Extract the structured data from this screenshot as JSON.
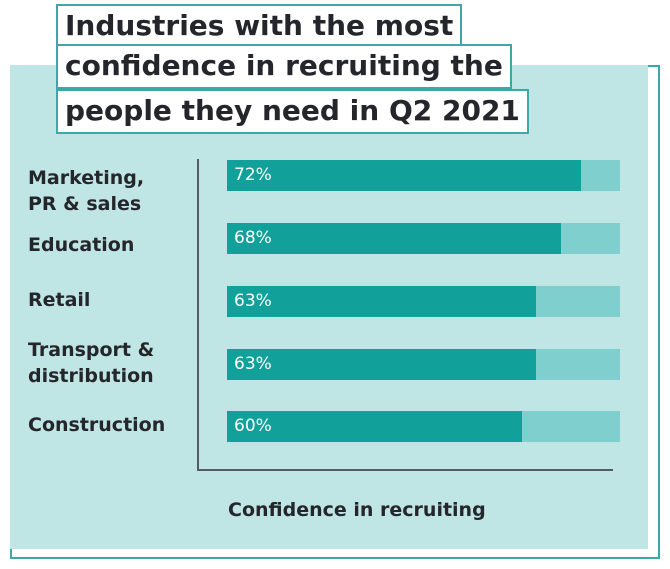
{
  "chart_data": {
    "type": "bar",
    "orientation": "horizontal",
    "title_lines": [
      "Industries with the most",
      "confidence in recruiting the",
      "people they need in Q2 2021"
    ],
    "categories": [
      "Marketing,\nPR & sales",
      "Education",
      "Retail",
      "Transport &\ndistribution",
      "Construction"
    ],
    "values": [
      72,
      68,
      63,
      63,
      60
    ],
    "value_labels": [
      "72%",
      "68%",
      "63%",
      "63%",
      "60%"
    ],
    "xlabel": "Confidence in recruiting",
    "ylabel": "",
    "xlim": [
      0,
      100
    ],
    "grid": false,
    "legend": "none",
    "colors": {
      "bar": "#12a09a",
      "track": "#7ecfcd",
      "panel": "#bfe5e5",
      "border": "#3fa8a6",
      "text": "#24262b"
    }
  }
}
